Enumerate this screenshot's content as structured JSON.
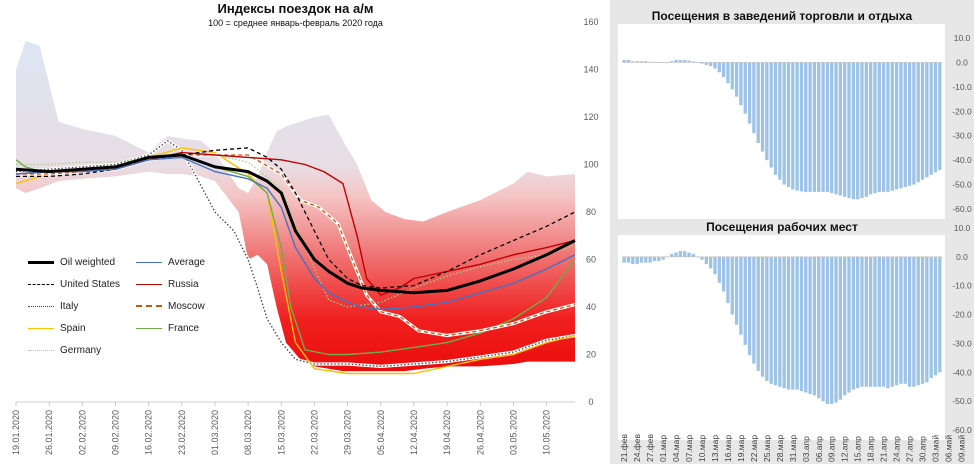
{
  "chart_data": [
    {
      "type": "line",
      "title": "Индексы поездок на а/м",
      "subtitle": "100 = среднее январь-февраль 2020 года",
      "y_axis": {
        "position": "right",
        "min": 0,
        "max": 160,
        "ticks": [
          0,
          20,
          40,
          60,
          80,
          100,
          120,
          140,
          160
        ]
      },
      "x_axis": {
        "min": "2020-01-19",
        "max": "2020-05-16",
        "tick_labels": [
          "19.01.2020",
          "26.01.2020",
          "02.02.2020",
          "09.02.2020",
          "16.02.2020",
          "23.02.2020",
          "01.03.2020",
          "08.03.2020",
          "15.03.2020",
          "22.03.2020",
          "29.03.2020",
          "05.04.2020",
          "12.04.2020",
          "19.04.2020",
          "26.04.2020",
          "03.05.2020",
          "10.05.2020"
        ]
      },
      "band": {
        "name": "",
        "x": [
          "2020-01-19",
          "2020-01-21",
          "2020-01-24",
          "2020-01-28",
          "2020-02-02",
          "2020-02-09",
          "2020-02-16",
          "2020-02-20",
          "2020-02-23",
          "2020-02-27",
          "2020-03-01",
          "2020-03-06",
          "2020-03-08",
          "2020-03-10",
          "2020-03-12",
          "2020-03-14",
          "2020-03-16",
          "2020-03-19",
          "2020-03-22",
          "2020-03-25",
          "2020-03-28",
          "2020-03-31",
          "2020-04-03",
          "2020-04-06",
          "2020-04-10",
          "2020-04-14",
          "2020-04-19",
          "2020-04-26",
          "2020-05-03",
          "2020-05-06",
          "2020-05-10",
          "2020-05-16"
        ],
        "upper": [
          140,
          152,
          150,
          118,
          115,
          112,
          105,
          112,
          111,
          110,
          105,
          90,
          88,
          95,
          105,
          114,
          116,
          118,
          120,
          121,
          110,
          100,
          85,
          80,
          77,
          76,
          80,
          85,
          92,
          97,
          95,
          96
        ],
        "lower": [
          90,
          88,
          90,
          93,
          94,
          95,
          97,
          96,
          96,
          95,
          93,
          80,
          60,
          62,
          58,
          40,
          25,
          18,
          15,
          14,
          13,
          13,
          13,
          13,
          13,
          14,
          15,
          15,
          16,
          17,
          17,
          17
        ]
      },
      "series": [
        {
          "name": "Oil weighted",
          "color": "#000000",
          "style": "solid-thick",
          "x": [
            "2020-01-19",
            "2020-01-26",
            "2020-02-02",
            "2020-02-09",
            "2020-02-16",
            "2020-02-23",
            "2020-03-01",
            "2020-03-08",
            "2020-03-12",
            "2020-03-15",
            "2020-03-18",
            "2020-03-22",
            "2020-03-25",
            "2020-03-29",
            "2020-04-01",
            "2020-04-05",
            "2020-04-12",
            "2020-04-19",
            "2020-04-26",
            "2020-05-03",
            "2020-05-10",
            "2020-05-16"
          ],
          "values": [
            98,
            97,
            98,
            99,
            103,
            104,
            99,
            97,
            93,
            88,
            72,
            60,
            55,
            50,
            48,
            47,
            46,
            47,
            51,
            56,
            62,
            68
          ]
        },
        {
          "name": "Average",
          "color": "#4472c4",
          "style": "solid",
          "x": [
            "2020-01-19",
            "2020-01-26",
            "2020-02-02",
            "2020-02-09",
            "2020-02-16",
            "2020-02-23",
            "2020-03-01",
            "2020-03-08",
            "2020-03-12",
            "2020-03-15",
            "2020-03-18",
            "2020-03-22",
            "2020-03-25",
            "2020-03-29",
            "2020-04-01",
            "2020-04-05",
            "2020-04-12",
            "2020-04-19",
            "2020-04-26",
            "2020-05-03",
            "2020-05-10",
            "2020-05-16"
          ],
          "values": [
            96,
            97,
            97,
            98,
            102,
            103,
            97,
            94,
            90,
            82,
            65,
            52,
            46,
            42,
            40,
            39,
            40,
            42,
            46,
            50,
            56,
            62
          ]
        },
        {
          "name": "United States",
          "color": "#000000",
          "style": "dashed",
          "x": [
            "2020-01-19",
            "2020-01-26",
            "2020-02-02",
            "2020-02-09",
            "2020-02-16",
            "2020-02-23",
            "2020-03-01",
            "2020-03-08",
            "2020-03-12",
            "2020-03-15",
            "2020-03-18",
            "2020-03-22",
            "2020-03-25",
            "2020-03-29",
            "2020-04-01",
            "2020-04-05",
            "2020-04-12",
            "2020-04-19",
            "2020-04-26",
            "2020-05-03",
            "2020-05-10",
            "2020-05-16"
          ],
          "values": [
            95,
            95,
            96,
            98,
            103,
            104,
            106,
            107,
            103,
            98,
            88,
            72,
            60,
            52,
            49,
            48,
            49,
            55,
            62,
            68,
            74,
            80
          ]
        },
        {
          "name": "Russia",
          "color": "#c00000",
          "style": "solid",
          "x": [
            "2020-01-19",
            "2020-01-26",
            "2020-02-02",
            "2020-02-09",
            "2020-02-16",
            "2020-02-23",
            "2020-03-01",
            "2020-03-08",
            "2020-03-15",
            "2020-03-20",
            "2020-03-24",
            "2020-03-28",
            "2020-03-31",
            "2020-04-02",
            "2020-04-05",
            "2020-04-09",
            "2020-04-12",
            "2020-04-19",
            "2020-04-26",
            "2020-05-03",
            "2020-05-10",
            "2020-05-16"
          ],
          "values": [
            96,
            97,
            97,
            98,
            102,
            105,
            104,
            103,
            102,
            100,
            97,
            92,
            70,
            52,
            45,
            48,
            52,
            55,
            58,
            62,
            65,
            68
          ]
        },
        {
          "name": "Italy",
          "color": "#444444",
          "style": "dotted",
          "x": [
            "2020-01-19",
            "2020-01-26",
            "2020-02-02",
            "2020-02-09",
            "2020-02-16",
            "2020-02-20",
            "2020-02-23",
            "2020-02-26",
            "2020-03-01",
            "2020-03-05",
            "2020-03-08",
            "2020-03-10",
            "2020-03-12",
            "2020-03-15",
            "2020-03-18",
            "2020-03-22",
            "2020-03-29",
            "2020-04-05",
            "2020-04-12",
            "2020-04-19",
            "2020-04-26",
            "2020-05-03",
            "2020-05-10",
            "2020-05-16"
          ],
          "values": [
            97,
            98,
            99,
            100,
            104,
            110,
            106,
            95,
            80,
            72,
            60,
            48,
            35,
            25,
            18,
            16,
            16,
            15,
            16,
            17,
            19,
            21,
            26,
            28
          ]
        },
        {
          "name": "Moscow",
          "color": "#c55a11",
          "style": "dashed-double",
          "x": [
            "2020-01-19",
            "2020-01-26",
            "2020-02-02",
            "2020-02-09",
            "2020-02-16",
            "2020-02-23",
            "2020-03-01",
            "2020-03-08",
            "2020-03-15",
            "2020-03-19",
            "2020-03-23",
            "2020-03-27",
            "2020-03-30",
            "2020-04-02",
            "2020-04-05",
            "2020-04-09",
            "2020-04-13",
            "2020-04-19",
            "2020-04-26",
            "2020-05-03",
            "2020-05-10",
            "2020-05-16"
          ],
          "values": [
            96,
            96,
            97,
            98,
            102,
            104,
            104,
            104,
            96,
            85,
            82,
            75,
            60,
            45,
            38,
            36,
            30,
            28,
            30,
            33,
            38,
            41
          ]
        },
        {
          "name": "Spain",
          "color": "#ffc000",
          "style": "solid",
          "x": [
            "2020-01-19",
            "2020-01-26",
            "2020-02-02",
            "2020-02-09",
            "2020-02-16",
            "2020-02-23",
            "2020-03-01",
            "2020-03-08",
            "2020-03-12",
            "2020-03-15",
            "2020-03-18",
            "2020-03-22",
            "2020-03-29",
            "2020-04-05",
            "2020-04-12",
            "2020-04-19",
            "2020-04-26",
            "2020-05-03",
            "2020-05-10",
            "2020-05-16"
          ],
          "values": [
            92,
            96,
            97,
            98,
            103,
            107,
            105,
            96,
            88,
            55,
            25,
            14,
            12,
            12,
            12,
            15,
            18,
            20,
            25,
            28
          ]
        },
        {
          "name": "France",
          "color": "#70ad47",
          "style": "solid",
          "x": [
            "2020-01-19",
            "2020-01-21",
            "2020-01-26",
            "2020-02-02",
            "2020-02-09",
            "2020-02-16",
            "2020-02-23",
            "2020-03-01",
            "2020-03-08",
            "2020-03-12",
            "2020-03-15",
            "2020-03-17",
            "2020-03-20",
            "2020-03-25",
            "2020-03-29",
            "2020-04-05",
            "2020-04-12",
            "2020-04-19",
            "2020-04-26",
            "2020-05-03",
            "2020-05-10",
            "2020-05-16"
          ],
          "values": [
            102,
            99,
            96,
            97,
            98,
            102,
            104,
            99,
            95,
            88,
            65,
            40,
            22,
            20,
            20,
            21,
            23,
            25,
            29,
            35,
            44,
            60
          ]
        },
        {
          "name": "Germany",
          "color": "#a9d18e",
          "style": "dotted",
          "x": [
            "2020-01-19",
            "2020-01-26",
            "2020-02-02",
            "2020-02-09",
            "2020-02-16",
            "2020-02-23",
            "2020-03-01",
            "2020-03-08",
            "2020-03-15",
            "2020-03-20",
            "2020-03-25",
            "2020-03-29",
            "2020-04-05",
            "2020-04-12",
            "2020-04-19",
            "2020-04-26",
            "2020-05-03",
            "2020-05-10",
            "2020-05-16"
          ],
          "values": [
            100,
            100,
            101,
            101,
            103,
            105,
            104,
            101,
            90,
            65,
            43,
            40,
            42,
            48,
            53,
            57,
            60,
            62,
            66
          ]
        }
      ]
    },
    {
      "type": "bar",
      "title": "Посещения в заведений торговли и отдыха",
      "y_axis": {
        "position": "right",
        "min": -60,
        "max": 10,
        "ticks": [
          "10.0",
          "0.0",
          "-10.0",
          "-20.0",
          "-30.0",
          "-40.0",
          "-50.0",
          "-60.0"
        ]
      },
      "color": "#9dc3e6",
      "start_date": "2020-02-21",
      "values": [
        1,
        1,
        0.5,
        0.5,
        0.5,
        0.5,
        0.3,
        0.2,
        0,
        -0.2,
        0,
        0.5,
        1,
        1,
        1,
        0.8,
        0.4,
        0,
        -0.5,
        -1,
        -1.5,
        -2.5,
        -4,
        -6,
        -8.5,
        -11,
        -14,
        -17.5,
        -21,
        -25,
        -29,
        -33,
        -36.5,
        -40,
        -43,
        -46,
        -48,
        -50,
        -51,
        -52,
        -52.5,
        -52.8,
        -53,
        -53,
        -53,
        -53,
        -53,
        -53,
        -53.5,
        -54,
        -54.5,
        -55,
        -55.5,
        -56,
        -56,
        -55.5,
        -55,
        -54,
        -53.5,
        -53,
        -53,
        -53,
        -52.5,
        -52,
        -51.5,
        -51,
        -50.5,
        -50,
        -49,
        -48,
        -47,
        -46,
        -45,
        -44
      ]
    },
    {
      "type": "bar",
      "title": "Посещения рабочих мест",
      "y_axis": {
        "position": "right",
        "min": -60,
        "max": 10,
        "ticks": [
          "10.0",
          "0.0",
          "-10.0",
          "-20.0",
          "-30.0",
          "-40.0",
          "-50.0",
          "-60.0"
        ]
      },
      "color": "#9dc3e6",
      "start_date": "2020-02-21",
      "tick_labels": [
        "21.фев",
        "24.фев",
        "27.фев",
        "01.мар",
        "04.мар",
        "07.мар",
        "10.мар",
        "13.мар",
        "16.мар",
        "19.мар",
        "22.мар",
        "25.мар",
        "28.мар",
        "31.мар",
        "03.апр",
        "06.апр",
        "09.апр",
        "12.апр",
        "15.апр",
        "18.апр",
        "21.апр",
        "24.апр",
        "27.апр",
        "30.апр",
        "03.май",
        "06.май",
        "09.май"
      ],
      "values": [
        -2,
        -2,
        -2.5,
        -2.5,
        -2,
        -2,
        -2,
        -1.5,
        -1.5,
        -1,
        0,
        1,
        1.5,
        2,
        2,
        1.5,
        1,
        0,
        -1,
        -2.5,
        -4,
        -6,
        -9,
        -12,
        -16,
        -20,
        -23.5,
        -27,
        -30.5,
        -34,
        -37,
        -39.5,
        -41.5,
        -43,
        -44,
        -44.5,
        -45,
        -45.5,
        -46,
        -46,
        -46,
        -46.5,
        -47,
        -47.5,
        -48,
        -49,
        -50,
        -51,
        -51,
        -50.5,
        -49.5,
        -48,
        -47,
        -46,
        -45.5,
        -45,
        -45,
        -45,
        -45,
        -45,
        -45,
        -45.5,
        -45,
        -44.5,
        -44,
        -44,
        -45,
        -45,
        -44.5,
        -44,
        -43.5,
        -42,
        -41,
        -40
      ]
    }
  ]
}
